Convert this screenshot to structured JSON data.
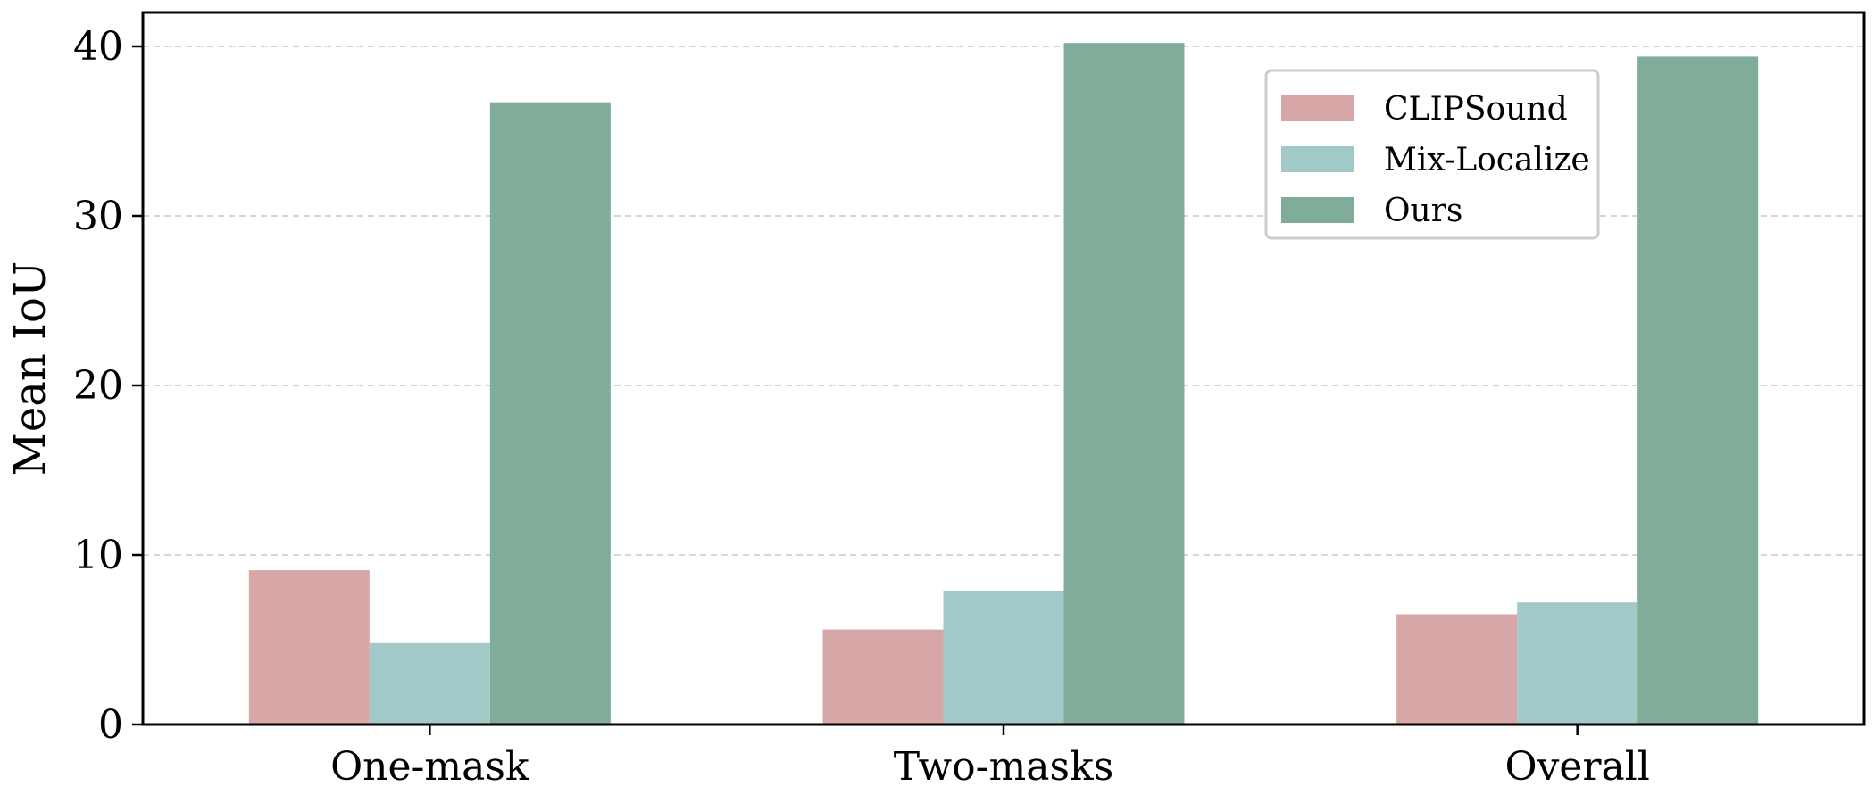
{
  "chart_data": {
    "type": "bar",
    "title": "",
    "xlabel": "",
    "ylabel": "Mean IoU",
    "categories": [
      "One-mask",
      "Two-masks",
      "Overall"
    ],
    "series": [
      {
        "name": "CLIPSound",
        "values": [
          9.1,
          5.6,
          6.5
        ]
      },
      {
        "name": "Mix-Localize",
        "values": [
          4.8,
          7.9,
          7.2
        ]
      },
      {
        "name": "Ours",
        "values": [
          36.7,
          40.2,
          39.4
        ]
      }
    ],
    "ylim": [
      0,
      42
    ],
    "yticks": [
      0,
      10,
      20,
      30,
      40
    ],
    "grid": "y-dashed",
    "legend_position": "top-right"
  },
  "colors": {
    "CLIPSound": "#d7a6a6",
    "Mix-Localize": "#a1c9c8",
    "Ours": "#80ad99",
    "grid": "#c8c8c8",
    "axis": "#000000"
  }
}
